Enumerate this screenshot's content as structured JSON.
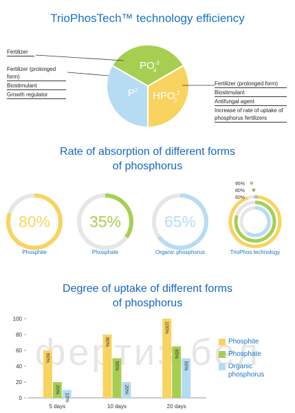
{
  "title": "TrioPhosTech™ technology efficiency",
  "pie": {
    "slices": [
      {
        "formula": {
          "base": "PO",
          "sup": "-3",
          "sub": "4"
        },
        "color": "#a6cf52",
        "notes": [
          "Fertilizer"
        ]
      },
      {
        "formula": {
          "base": "P",
          "sup": "2"
        },
        "color": "#b5dcf3",
        "notes": [
          "Fertilizer (prolonged form)",
          "Biostimulant",
          "Growth regulator"
        ]
      },
      {
        "formula": {
          "base": "HPO",
          "sup": "-2",
          "sub": "3"
        },
        "color": "#f9d35f",
        "notes": [
          "Fertilizer (prolonged form)",
          "Biostimulant",
          "Antifungal agent",
          "Increase of rate of uptake of phosphorus fertilizers"
        ]
      }
    ]
  },
  "watermark": "фертиз.бел",
  "chart_data": [
    {
      "type": "donut",
      "title": "Rate of absorption of different forms of phosphorus",
      "categories": [
        "Phosphite",
        "Phosphate",
        "Organic phosphorus"
      ],
      "values": [
        80,
        35,
        65
      ],
      "value_labels": [
        "80%",
        "35%",
        "65%"
      ],
      "colors": [
        "#f9d35f",
        "#a6cf52",
        "#b5dcf3"
      ],
      "combined": {
        "category": "TrioPhos technology",
        "values": [
          95,
          80,
          60
        ],
        "value_labels": [
          "95%",
          "80%",
          "60%"
        ]
      }
    },
    {
      "type": "bar",
      "title": "Degree of uptake of different forms of phosphorus",
      "categories": [
        "5 days",
        "10 days",
        "20 days"
      ],
      "series": [
        {
          "name": "Phosphite",
          "color": "#f9d35f",
          "values": [
            60,
            80,
            100
          ],
          "value_labels": [
            "60%",
            "80%",
            "100%"
          ]
        },
        {
          "name": "Phosphate",
          "color": "#a6cf52",
          "values": [
            20,
            50,
            65
          ],
          "value_labels": [
            "20%",
            "50%",
            "65%"
          ]
        },
        {
          "name": "Organic phosphorus",
          "color": "#b5dcf3",
          "values": [
            10,
            20,
            50
          ],
          "value_labels": [
            "10%",
            "20%",
            "50%"
          ]
        }
      ],
      "ylim": [
        0,
        100
      ],
      "yticks": [
        0,
        20,
        40,
        60,
        80,
        100
      ]
    }
  ]
}
